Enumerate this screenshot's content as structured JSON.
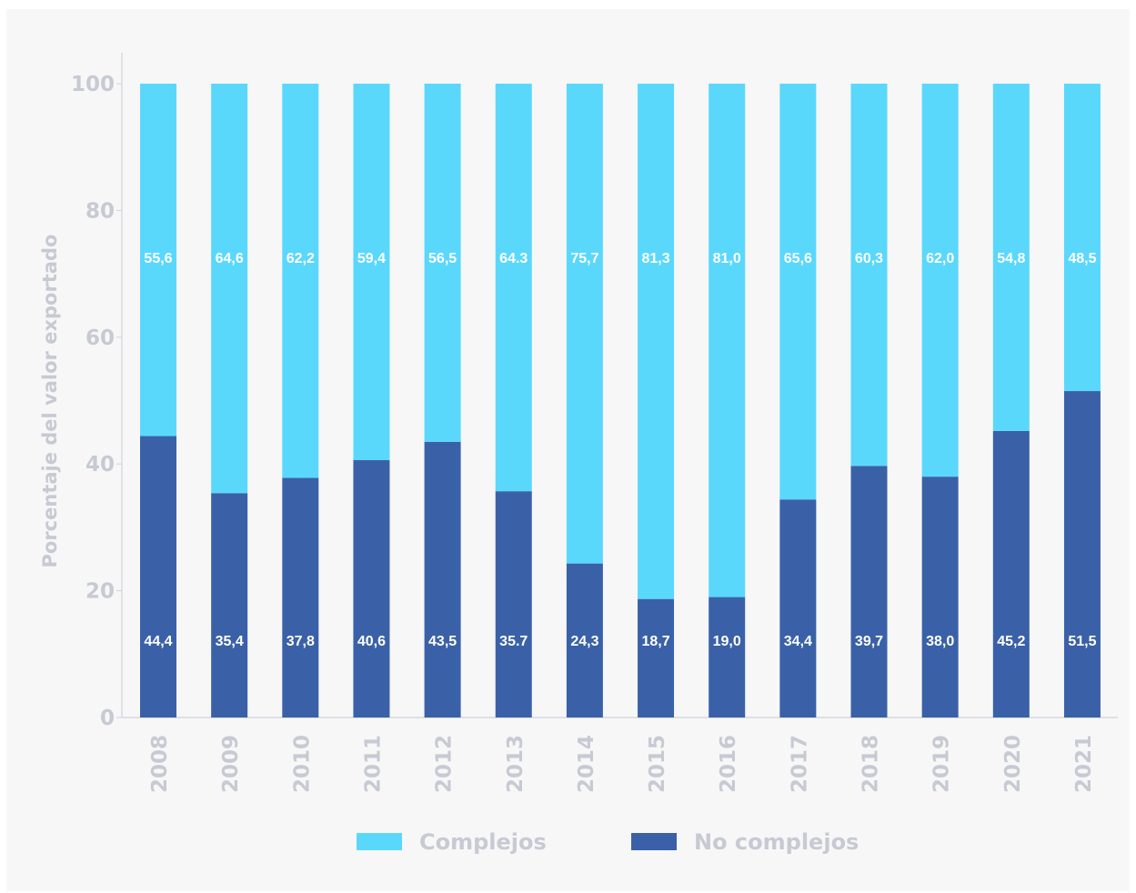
{
  "chart_data": {
    "type": "bar",
    "stacked": true,
    "ylabel": "Porcentaje del valor exportado",
    "xlabel": "",
    "ylim": [
      0,
      100
    ],
    "yticks": [
      0,
      20,
      40,
      60,
      80,
      100
    ],
    "categories": [
      "2008",
      "2009",
      "2010",
      "2011",
      "2012",
      "2013",
      "2014",
      "2015",
      "2016",
      "2017",
      "2018",
      "2019",
      "2020",
      "2021"
    ],
    "series": [
      {
        "name": "No complejos",
        "color": "#3a61a8",
        "values": [
          44.4,
          35.4,
          37.8,
          40.6,
          43.5,
          35.7,
          24.3,
          18.7,
          19.0,
          34.4,
          39.7,
          38.0,
          45.2,
          51.5
        ],
        "labels": [
          "44,4",
          "35,4",
          "37,8",
          "40,6",
          "43,5",
          "35.7",
          "24,3",
          "18,7",
          "19,0",
          "34,4",
          "39,7",
          "38,0",
          "45,2",
          "51,5"
        ]
      },
      {
        "name": "Complejos",
        "color": "#5ad8fc",
        "values": [
          55.6,
          64.6,
          62.2,
          59.4,
          56.5,
          64.3,
          75.7,
          81.3,
          81.0,
          65.6,
          60.3,
          62.0,
          54.8,
          48.5
        ],
        "labels": [
          "55,6",
          "64,6",
          "62,2",
          "59,4",
          "56,5",
          "64.3",
          "75,7",
          "81,3",
          "81,0",
          "65,6",
          "60,3",
          "62,0",
          "54,8",
          "48,5"
        ]
      }
    ],
    "legend": [
      {
        "name": "Complejos",
        "color": "#5ad8fc"
      },
      {
        "name": "No complejos",
        "color": "#3a61a8"
      }
    ],
    "legend_position": "bottom",
    "grid": false
  }
}
